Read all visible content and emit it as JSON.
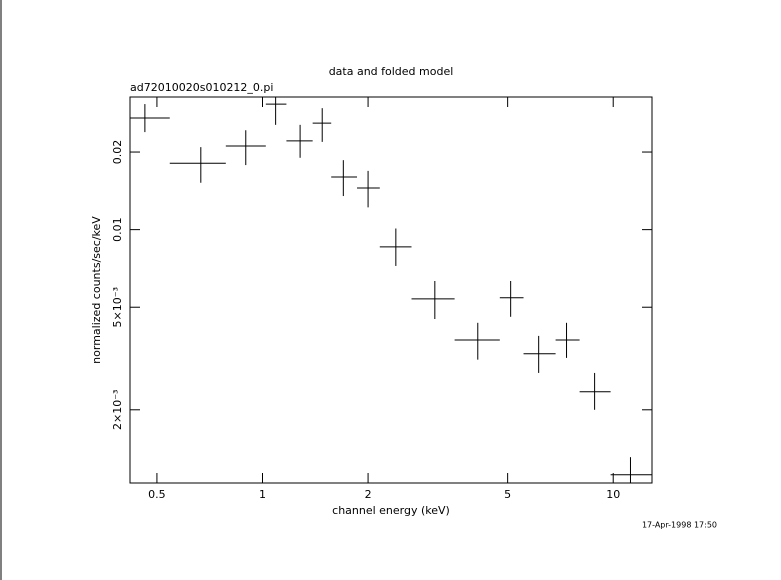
{
  "chart_data": {
    "type": "scatter",
    "title": "data and folded model",
    "subtitle": "ad72010020s010212_0.pi",
    "x_label": "channel energy (keV)",
    "y_label": "normalized counts/sec/keV",
    "timestamp": "17-Apr-1998 17:50",
    "log_x": true,
    "log_y": true,
    "xlim": [
      0.419,
      12.9
    ],
    "ylim": [
      0.00104,
      0.0327
    ],
    "xticks": [
      0.5,
      1,
      2,
      5,
      10
    ],
    "yticks": [
      {
        "value": 0.002,
        "label": "2×10⁻³"
      },
      {
        "value": 0.005,
        "label": "5×10⁻³"
      },
      0.01,
      0.02
    ],
    "series": [
      {
        "color": "#000000",
        "x": [
          0.462,
          0.667,
          0.896,
          1.09,
          1.28,
          1.48,
          1.7,
          2.0,
          2.4,
          3.1,
          4.11,
          5.1,
          6.13,
          7.36,
          8.85,
          11.2
        ],
        "x_low": [
          0.419,
          0.544,
          0.786,
          1.022,
          1.17,
          1.39,
          1.57,
          1.86,
          2.16,
          2.66,
          3.53,
          4.75,
          5.55,
          6.85,
          8.02,
          9.83
        ],
        "x_high": [
          0.544,
          0.786,
          1.022,
          1.17,
          1.39,
          1.57,
          1.86,
          2.16,
          2.66,
          3.53,
          4.75,
          5.55,
          6.85,
          8.02,
          9.83,
          12.9
        ],
        "values": [
          0.0271,
          0.0181,
          0.0211,
          0.0307,
          0.0221,
          0.0259,
          0.016,
          0.0145,
          0.00857,
          0.00539,
          0.00373,
          0.00544,
          0.0033,
          0.00373,
          0.00235,
          0.00112
        ],
        "y_low": [
          0.0239,
          0.0152,
          0.0178,
          0.0255,
          0.019,
          0.0219,
          0.0135,
          0.0122,
          0.00723,
          0.0045,
          0.00313,
          0.00459,
          0.00278,
          0.00318,
          0.002,
          0.00095
        ],
        "y_high": [
          0.0307,
          0.0209,
          0.0243,
          0.0327,
          0.0255,
          0.0296,
          0.0186,
          0.0169,
          0.0101,
          0.00632,
          0.00435,
          0.00632,
          0.00387,
          0.00435,
          0.00278,
          0.00131
        ]
      }
    ]
  }
}
